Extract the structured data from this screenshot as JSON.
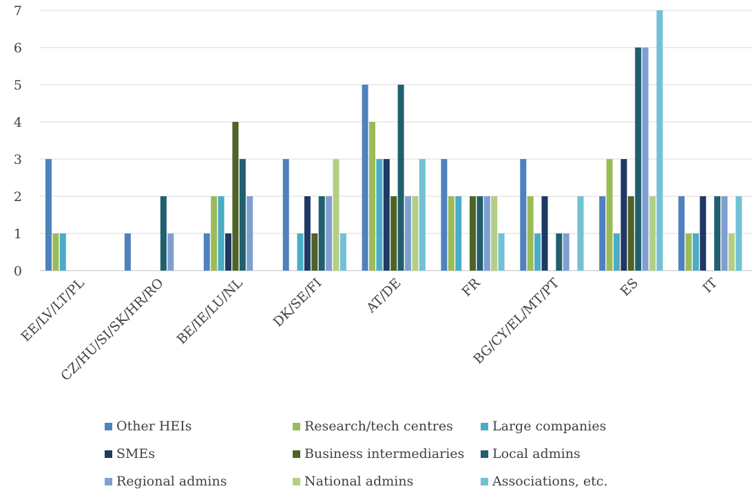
{
  "chart_data": {
    "type": "bar",
    "categories": [
      "EE/LV/LT/PL",
      "CZ/HU/SI/SK/HR/RO",
      "BE/IE/LU/NL",
      "DK/SE/FI",
      "AT/DE",
      "FR",
      "BG/CY/EL/MT/PT",
      "ES",
      "IT"
    ],
    "ylim": [
      0,
      7
    ],
    "yticks": [
      "0",
      "1",
      "2",
      "3",
      "4",
      "5",
      "6",
      "7"
    ],
    "grid": true,
    "legend_position": "bottom",
    "series": [
      {
        "name": "Other HEIs",
        "color": "#4f81bd",
        "values": [
          3,
          1,
          1,
          3,
          5,
          3,
          3,
          2,
          2
        ]
      },
      {
        "name": "Research/tech centres",
        "color": "#9bbb59",
        "values": [
          1,
          0,
          2,
          0,
          4,
          2,
          2,
          3,
          1
        ]
      },
      {
        "name": "Large companies",
        "color": "#4bacc6",
        "values": [
          1,
          0,
          2,
          1,
          3,
          2,
          1,
          1,
          1
        ]
      },
      {
        "name": "SMEs",
        "color": "#1f3864",
        "values": [
          0,
          0,
          1,
          2,
          3,
          0,
          2,
          3,
          2
        ]
      },
      {
        "name": "Business intermediaries",
        "color": "#4f6228",
        "values": [
          0,
          0,
          4,
          1,
          2,
          2,
          0,
          2,
          0
        ]
      },
      {
        "name": "Local admins",
        "color": "#215f6e",
        "values": [
          0,
          2,
          3,
          2,
          5,
          2,
          1,
          6,
          2
        ]
      },
      {
        "name": "Regional admins",
        "color": "#7f9fd0",
        "values": [
          0,
          1,
          2,
          2,
          2,
          2,
          1,
          6,
          2
        ]
      },
      {
        "name": "National admins",
        "color": "#b3cf85",
        "values": [
          0,
          0,
          0,
          3,
          2,
          2,
          0,
          2,
          1
        ]
      },
      {
        "name": "Associations, etc.",
        "color": "#72c1d4",
        "values": [
          0,
          0,
          0,
          1,
          3,
          1,
          2,
          7,
          2
        ]
      }
    ]
  }
}
